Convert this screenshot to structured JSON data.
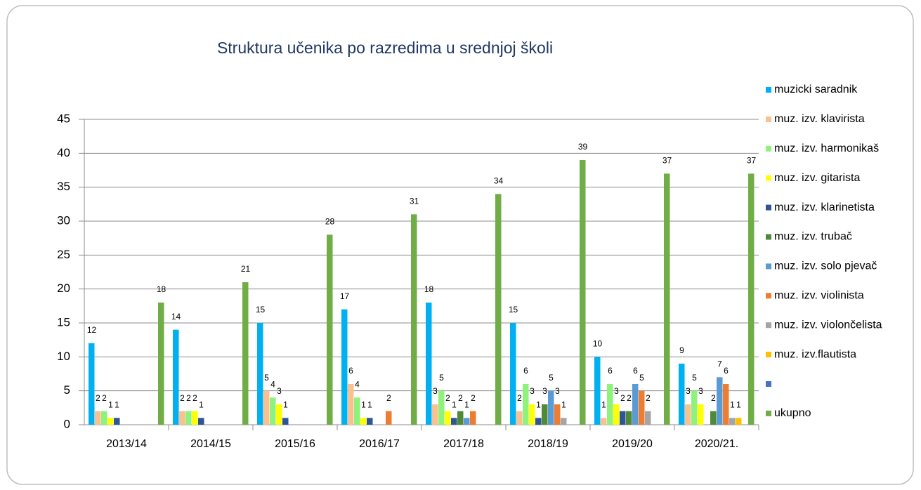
{
  "chart_data": {
    "type": "bar",
    "title": "Struktura učenika po razredima u srednjoj školi",
    "categories": [
      "2013/14",
      "2014/15",
      "2015/16",
      "2016/17",
      "2017/18",
      "2018/19",
      "2019/20",
      "2020/21."
    ],
    "series": [
      {
        "name": "muzicki saradnik",
        "color": "#00b0f0",
        "values": [
          12,
          14,
          15,
          17,
          18,
          15,
          10,
          9
        ]
      },
      {
        "name": "muz. izv. klavirista",
        "color": "#fac090",
        "values": [
          2,
          2,
          5,
          6,
          3,
          2,
          1,
          3
        ]
      },
      {
        "name": "muz. izv. harmonikaš",
        "color": "#8ef27c",
        "values": [
          2,
          2,
          4,
          4,
          5,
          6,
          6,
          5
        ]
      },
      {
        "name": "muz. izv. gitarista",
        "color": "#ffff00",
        "values": [
          1,
          2,
          3,
          1,
          2,
          3,
          3,
          3
        ]
      },
      {
        "name": "muz. izv. klarinetista",
        "color": "#2f5597",
        "values": [
          1,
          1,
          1,
          1,
          1,
          1,
          2,
          0
        ]
      },
      {
        "name": "muz. izv. trubač",
        "color": "#4e8a3a",
        "values": [
          0,
          0,
          0,
          0,
          2,
          3,
          2,
          2
        ]
      },
      {
        "name": "muz. izv. solo pjevač",
        "color": "#5b9bd5",
        "values": [
          0,
          0,
          0,
          0,
          1,
          5,
          6,
          7
        ]
      },
      {
        "name": "muz. izv. violinista",
        "color": "#ed7d31",
        "values": [
          0,
          0,
          0,
          2,
          2,
          3,
          5,
          6
        ]
      },
      {
        "name": "muz. izv. violončelista",
        "color": "#a5a5a5",
        "values": [
          0,
          0,
          0,
          0,
          0,
          1,
          2,
          1
        ]
      },
      {
        "name": "muz. izv.flautista",
        "color": "#ffc000",
        "values": [
          0,
          0,
          0,
          0,
          0,
          0,
          0,
          1
        ]
      },
      {
        "name": null,
        "color": "#4472c4",
        "values": [
          0,
          0,
          0,
          0,
          0,
          0,
          0,
          0
        ]
      },
      {
        "name": "ukupno",
        "color": "#70ad47",
        "values": [
          18,
          21,
          28,
          31,
          34,
          39,
          37,
          37
        ]
      }
    ],
    "ylim": [
      0,
      45
    ],
    "yticks": [
      0,
      5,
      10,
      15,
      20,
      25,
      30,
      35,
      40,
      45
    ],
    "grid": true,
    "legend": "right"
  }
}
